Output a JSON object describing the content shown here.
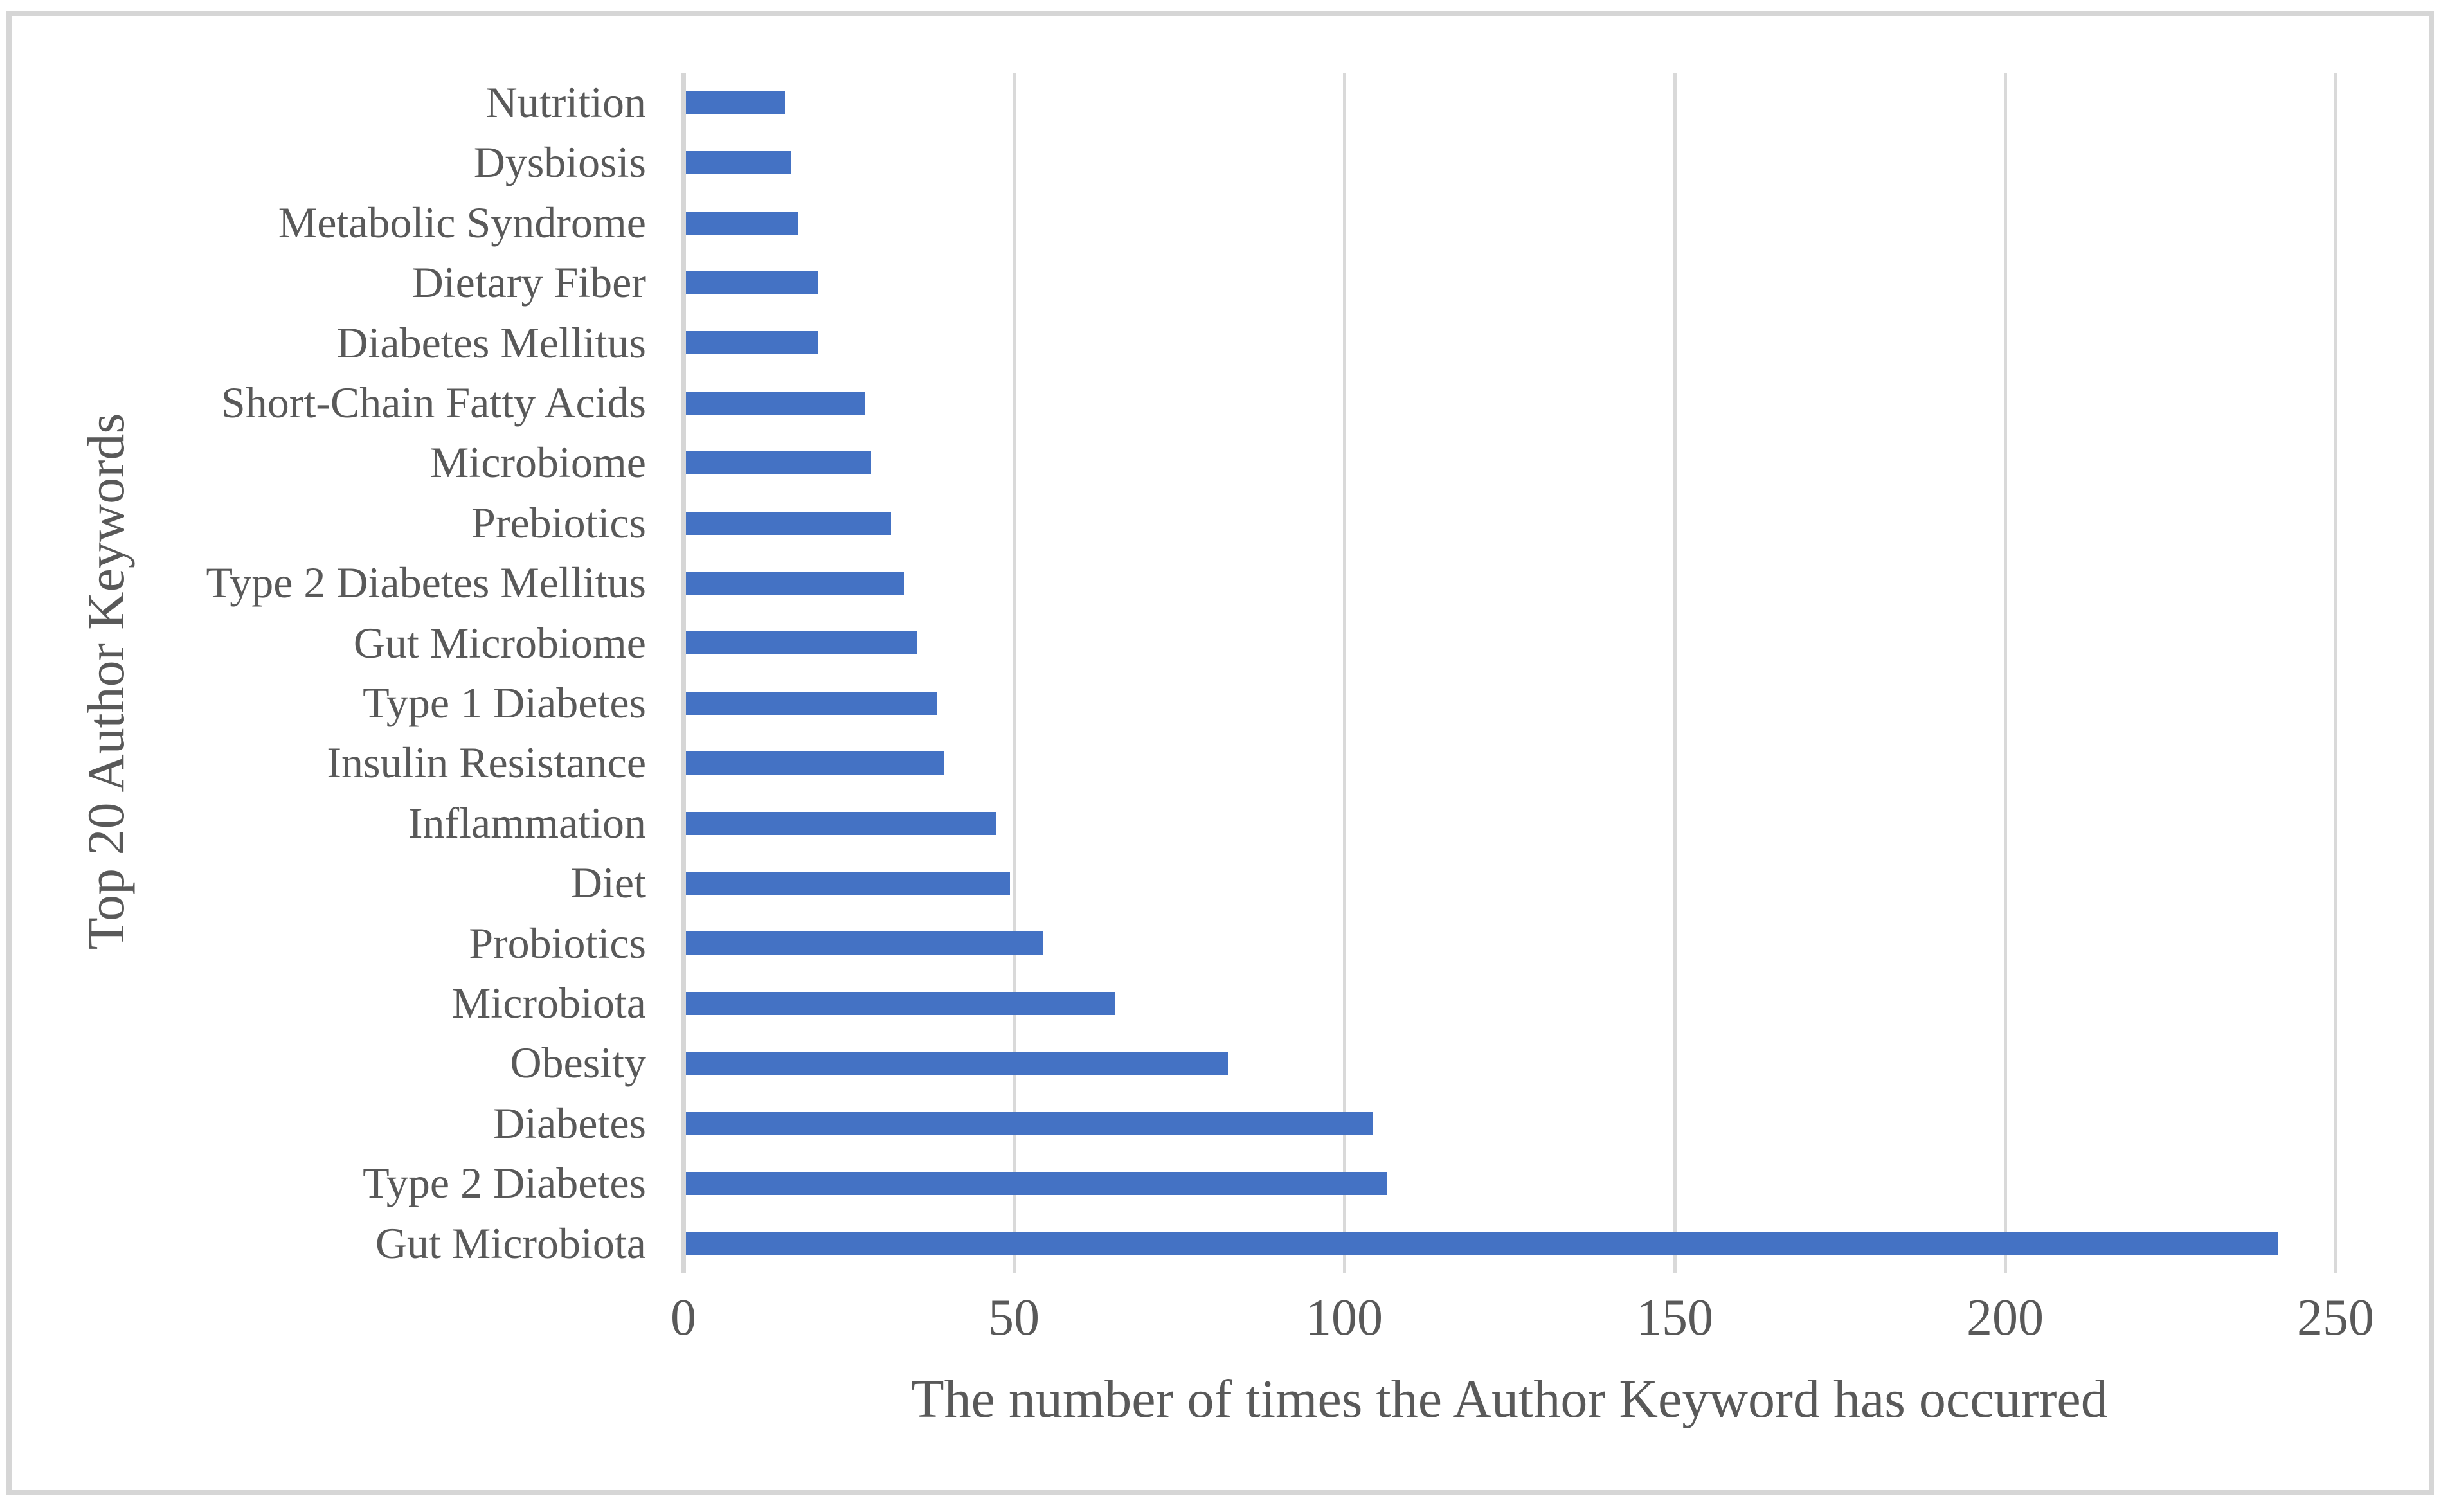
{
  "chart_data": {
    "type": "bar",
    "orientation": "horizontal",
    "title": "",
    "xlabel": "The number of times the Author Keyword has occurred",
    "ylabel": "Top 20 Author Keywords",
    "categories": [
      "Nutrition",
      "Dysbiosis",
      "Metabolic Syndrome",
      "Dietary Fiber",
      "Diabetes Mellitus",
      "Short-Chain Fatty Acids",
      "Microbiome",
      "Prebiotics",
      "Type 2 Diabetes Mellitus",
      "Gut Microbiome",
      "Type 1 Diabetes",
      "Insulin Resistance",
      "Inflammation",
      "Diet",
      "Probiotics",
      "Microbiota",
      "Obesity",
      "Diabetes",
      "Type 2 Diabetes",
      "Gut Microbiota"
    ],
    "values": [
      15,
      16,
      17,
      20,
      20,
      27,
      28,
      31,
      33,
      35,
      38,
      39,
      47,
      49,
      54,
      65,
      82,
      104,
      106,
      241
    ],
    "xlim": [
      0,
      250
    ],
    "xticks": [
      0,
      50,
      100,
      150,
      200,
      250
    ],
    "grid": true,
    "legend": false,
    "bar_color": "#4472C4",
    "gridline_color": "#D9D9D9",
    "axis_line_color": "#D6D6D6",
    "frame_border_color": "#D6D6D6",
    "text_color": "#595959"
  }
}
